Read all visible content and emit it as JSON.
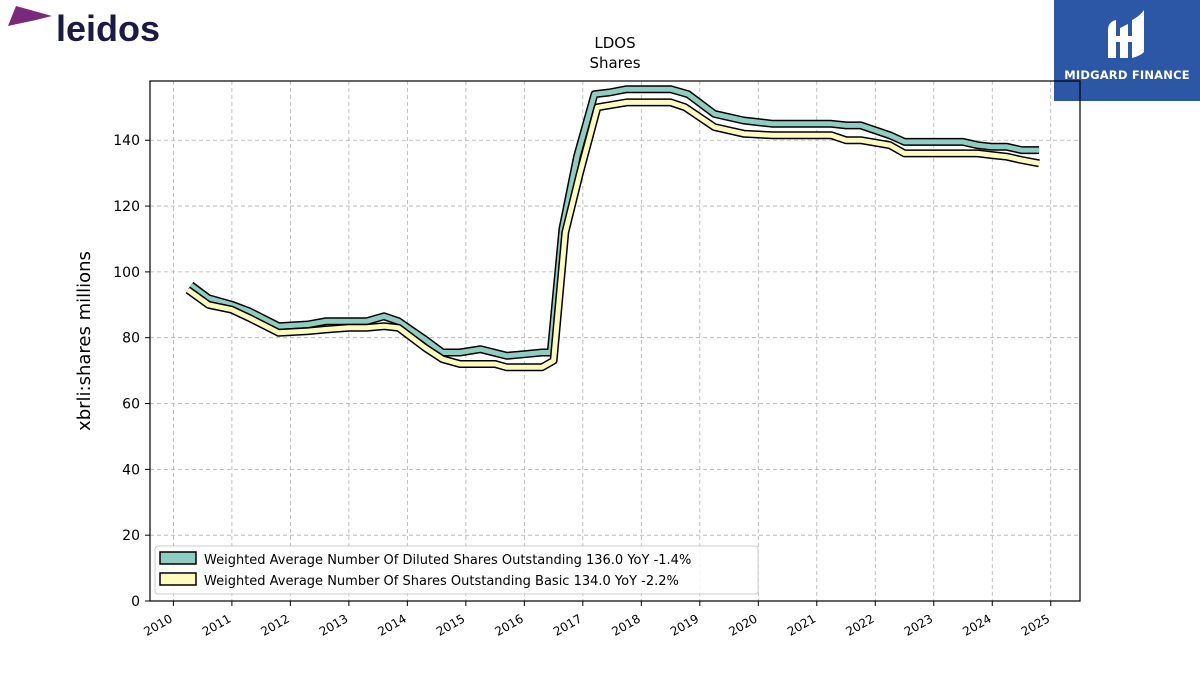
{
  "logo": {
    "text": "leidos"
  },
  "brand": {
    "name": "MIDGARD FINANCE",
    "color": "#2c56a6"
  },
  "chart_data": {
    "type": "line",
    "title": "LDOS",
    "subtitle": "Shares",
    "xlabel": "",
    "ylabel": "xbrli:shares millions",
    "xlim": [
      2009.6,
      2025.5
    ],
    "ylim": [
      0,
      158
    ],
    "yticks": [
      0,
      20,
      40,
      60,
      80,
      100,
      120,
      140
    ],
    "xticks": [
      2010,
      2011,
      2012,
      2013,
      2014,
      2015,
      2016,
      2017,
      2018,
      2019,
      2020,
      2021,
      2022,
      2023,
      2024,
      2025
    ],
    "grid": true,
    "legend_position": "bottom-left",
    "series": [
      {
        "name": "Weighted Average Number Of Diluted Shares Outstanding  136.0 YoY -1.4%",
        "color": "#8ecdc2",
        "points": [
          [
            2010.3,
            96
          ],
          [
            2010.6,
            92
          ],
          [
            2011.0,
            90
          ],
          [
            2011.3,
            88
          ],
          [
            2011.8,
            83.5
          ],
          [
            2012.3,
            84
          ],
          [
            2012.6,
            85
          ],
          [
            2013.0,
            85
          ],
          [
            2013.3,
            85
          ],
          [
            2013.6,
            86.5
          ],
          [
            2013.85,
            85
          ],
          [
            2014.3,
            79.5
          ],
          [
            2014.6,
            75.5
          ],
          [
            2014.9,
            75.5
          ],
          [
            2015.25,
            76.5
          ],
          [
            2015.7,
            74.5
          ],
          [
            2016.0,
            75
          ],
          [
            2016.3,
            75.5
          ],
          [
            2016.45,
            75.5
          ],
          [
            2016.65,
            113
          ],
          [
            2016.9,
            135
          ],
          [
            2017.2,
            154
          ],
          [
            2017.45,
            154.5
          ],
          [
            2017.75,
            155.5
          ],
          [
            2018.0,
            155.5
          ],
          [
            2018.5,
            155.5
          ],
          [
            2018.8,
            154
          ],
          [
            2019.25,
            148
          ],
          [
            2019.75,
            146
          ],
          [
            2020.25,
            145
          ],
          [
            2020.75,
            145
          ],
          [
            2021.25,
            145
          ],
          [
            2021.5,
            144.5
          ],
          [
            2021.75,
            144.5
          ],
          [
            2022.25,
            141.5
          ],
          [
            2022.5,
            139.5
          ],
          [
            2022.75,
            139.5
          ],
          [
            2023.25,
            139.5
          ],
          [
            2023.5,
            139.5
          ],
          [
            2023.75,
            138.5
          ],
          [
            2024.0,
            138
          ],
          [
            2024.25,
            138
          ],
          [
            2024.5,
            137
          ],
          [
            2024.8,
            137
          ]
        ]
      },
      {
        "name": "Weighted Average Number Of Shares Outstanding Basic  134.0 YoY -2.2%",
        "color": "#fffbbe",
        "points": [
          [
            2010.25,
            94.5
          ],
          [
            2010.6,
            90
          ],
          [
            2011.0,
            88.5
          ],
          [
            2011.3,
            86
          ],
          [
            2011.8,
            81.5
          ],
          [
            2012.3,
            82
          ],
          [
            2012.6,
            82.5
          ],
          [
            2013.0,
            83
          ],
          [
            2013.3,
            83
          ],
          [
            2013.6,
            83.5
          ],
          [
            2013.85,
            83
          ],
          [
            2014.3,
            77
          ],
          [
            2014.6,
            73.5
          ],
          [
            2014.9,
            72
          ],
          [
            2015.25,
            72
          ],
          [
            2015.5,
            72
          ],
          [
            2015.7,
            71
          ],
          [
            2016.0,
            71
          ],
          [
            2016.3,
            71
          ],
          [
            2016.5,
            73
          ],
          [
            2016.7,
            112
          ],
          [
            2016.95,
            130
          ],
          [
            2017.25,
            150
          ],
          [
            2017.75,
            151.5
          ],
          [
            2018.0,
            151.5
          ],
          [
            2018.5,
            151.5
          ],
          [
            2018.75,
            150
          ],
          [
            2019.25,
            144
          ],
          [
            2019.75,
            142
          ],
          [
            2020.25,
            141.5
          ],
          [
            2020.75,
            141.5
          ],
          [
            2021.25,
            141.5
          ],
          [
            2021.5,
            140
          ],
          [
            2021.75,
            140
          ],
          [
            2022.25,
            138.5
          ],
          [
            2022.5,
            136
          ],
          [
            2022.75,
            136
          ],
          [
            2023.25,
            136
          ],
          [
            2023.5,
            136
          ],
          [
            2023.75,
            136
          ],
          [
            2024.0,
            135.5
          ],
          [
            2024.25,
            135
          ],
          [
            2024.5,
            134
          ],
          [
            2024.8,
            133
          ]
        ]
      }
    ]
  }
}
